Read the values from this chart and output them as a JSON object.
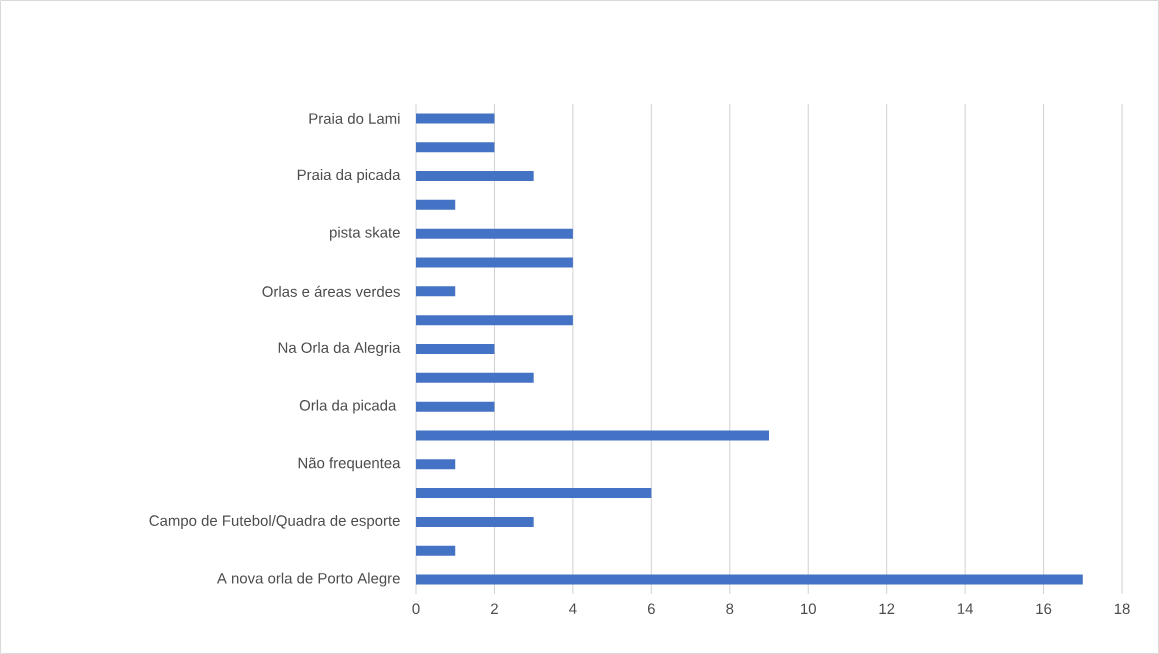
{
  "chart_data": {
    "type": "bar",
    "orientation": "horizontal",
    "categories": [
      "Praia do Lami",
      null,
      "Praia da picada",
      null,
      "pista skate",
      null,
      "Orlas e áreas verdes",
      null,
      "Na Orla da Alegria",
      null,
      "Orla da picada ",
      null,
      "Não frequentea",
      null,
      "Campo de Futebol/Quadra de esporte",
      null,
      "A nova orla de Porto Alegre"
    ],
    "values": [
      2,
      2,
      3,
      1,
      4,
      4,
      1,
      4,
      2,
      3,
      2,
      9,
      1,
      6,
      3,
      1,
      17
    ],
    "color": "#4472c4",
    "xlim": [
      0,
      18
    ],
    "xticks": [
      0,
      2,
      4,
      6,
      8,
      10,
      12,
      14,
      16,
      18
    ],
    "grid": "x"
  }
}
